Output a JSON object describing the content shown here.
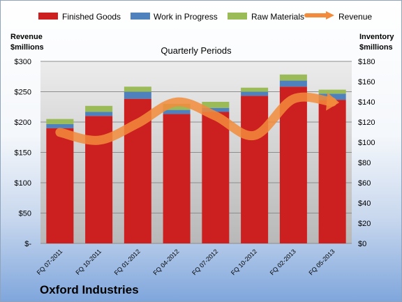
{
  "chart_data": {
    "type": "bar",
    "stacked": true,
    "title": "Quarterly Periods",
    "company": "Oxford Industries",
    "categories": [
      "FQ 07-2011",
      "FQ 10-2011",
      "FQ 01-2012",
      "FQ 04-2012",
      "FQ 07-2012",
      "FQ 10-2012",
      "FQ 02-2013",
      "FQ 05-2013"
    ],
    "y_left": {
      "label_line1": "Revenue",
      "label_line2": "$millions",
      "ylim": [
        0,
        300
      ],
      "ticks": [
        0,
        50,
        100,
        150,
        200,
        250,
        300
      ],
      "tick_labels": [
        "$-",
        "$50",
        "$100",
        "$150",
        "$200",
        "$250",
        "$300"
      ]
    },
    "y_right": {
      "label_line1": "Inventory",
      "label_line2": "$millions",
      "ylim": [
        0,
        180
      ],
      "ticks": [
        0,
        20,
        40,
        60,
        80,
        100,
        120,
        140,
        160,
        180
      ],
      "tick_labels": [
        "$0",
        "$20",
        "$40",
        "$60",
        "$80",
        "$100",
        "$120",
        "$140",
        "$160",
        "$180"
      ]
    },
    "series": [
      {
        "name": "Finished Goods",
        "axis": "right",
        "color": "#cc1f1f",
        "values": [
          114,
          126,
          143,
          128,
          130,
          146,
          155,
          142
        ]
      },
      {
        "name": "Work in Progress",
        "axis": "right",
        "color": "#4f81bd",
        "values": [
          4,
          4,
          7,
          4,
          4,
          4,
          6,
          6
        ]
      },
      {
        "name": "Raw Materials",
        "axis": "right",
        "color": "#9bbb59",
        "values": [
          5,
          6,
          5,
          6,
          6,
          4,
          6,
          4
        ]
      },
      {
        "name": "Revenue",
        "axis": "left",
        "type": "line",
        "color": "#f28c3c",
        "values": [
          183,
          170,
          198,
          233,
          210,
          178,
          238,
          233
        ]
      }
    ],
    "grid": true,
    "legend_position": "top"
  }
}
